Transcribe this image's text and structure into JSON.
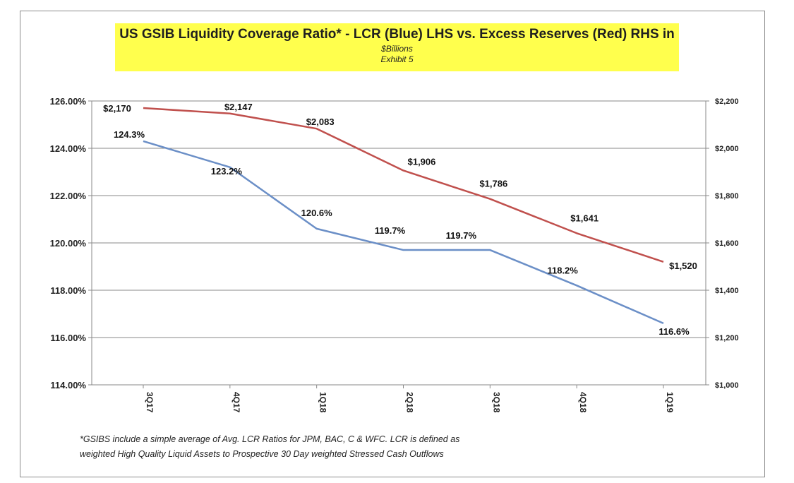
{
  "chart_data": {
    "type": "line",
    "title": "US GSIB Liquidity Coverage Ratio* - LCR (Blue) LHS vs. Excess Reserves (Red) RHS in",
    "subtitle": "$Billions",
    "subtitle2": "Exhibit 5",
    "categories": [
      "3Q17",
      "4Q17",
      "1Q18",
      "2Q18",
      "3Q18",
      "4Q18",
      "1Q19"
    ],
    "y_left": {
      "ylim": [
        114,
        126
      ],
      "ticks": [
        "114.00%",
        "116.00%",
        "118.00%",
        "120.00%",
        "122.00%",
        "124.00%",
        "126.00%"
      ]
    },
    "y_right": {
      "ylim": [
        1000,
        2200
      ],
      "ticks": [
        "$1,000",
        "$1,200",
        "$1,400",
        "$1,600",
        "$1,800",
        "$2,000",
        "$2,200"
      ]
    },
    "series": [
      {
        "axis": "left",
        "color": "#6b8fc7",
        "values": [
          124.3,
          123.2,
          120.6,
          119.7,
          119.7,
          118.2,
          116.6
        ],
        "labels": [
          "124.3%",
          "123.2%",
          "120.6%",
          "119.7%",
          "119.7%",
          "118.2%",
          "116.6%"
        ]
      },
      {
        "axis": "right",
        "color": "#c0504d",
        "values": [
          2170,
          2147,
          2083,
          1906,
          1786,
          1641,
          1520
        ],
        "labels": [
          "$2,170",
          "$2,147",
          "$2,083",
          "$1,906",
          "$1,786",
          "$1,641",
          "$1,520"
        ]
      }
    ],
    "grid": "horizontal",
    "title_background": "#ffff4d"
  },
  "footnote": {
    "line1": "*GSIBS include a simple average of  Avg. LCR Ratios for JPM, BAC, C & WFC.  LCR is defined as",
    "line2": "weighted High Quality Liquid Assets to Prospective 30 Day weighted Stressed Cash Outflows"
  }
}
